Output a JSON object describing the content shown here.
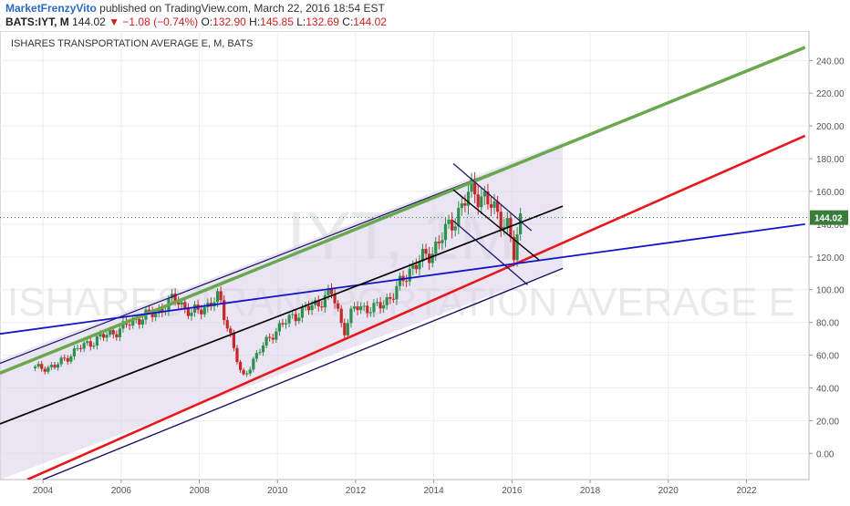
{
  "header": {
    "author": "MarketFrenzyVito",
    "published_text": "published on TradingView.com, March 22, 2016 18:54 EST",
    "symbol": "BATS:IYT, M",
    "last": "144.02",
    "change": "▼ −1.08 (−0.74%)",
    "open_label": "O:",
    "open": "132.90",
    "high_label": "H:",
    "high": "145.85",
    "low_label": "L:",
    "low": "132.69",
    "close_label": "C:",
    "close": "144.02"
  },
  "chart_data": {
    "type": "candlestick",
    "title": "ISHARES TRANSPORTATION AVERAGE E, M, BATS",
    "watermark_symbol": "IYT, 1M",
    "watermark_name": "ISHARES TRANSPORTATION AVERAGE E",
    "ylim": [
      -16,
      258
    ],
    "xlim": [
      2002.9,
      2023.6
    ],
    "y_ticks": [
      0,
      20,
      40,
      60,
      80,
      100,
      120,
      140,
      160,
      180,
      200,
      220,
      240
    ],
    "y_tick_labels": [
      "0.00",
      "20.00",
      "40.00",
      "60.00",
      "80.00",
      "100.00",
      "120.00",
      "140.00",
      "160.00",
      "180.00",
      "200.00",
      "220.00",
      "240.00"
    ],
    "x_ticks": [
      2004,
      2006,
      2008,
      2010,
      2012,
      2014,
      2016,
      2018,
      2020,
      2022
    ],
    "x_tick_labels": [
      "2004",
      "2006",
      "2008",
      "2010",
      "2012",
      "2014",
      "2016",
      "2018",
      "2020",
      "2022"
    ],
    "last_price": 144.02,
    "last_price_label": "144.02",
    "price_anchors": [
      [
        2003.8,
        52
      ],
      [
        2004.3,
        53
      ],
      [
        2004.9,
        64
      ],
      [
        2005.4,
        70
      ],
      [
        2005.9,
        75
      ],
      [
        2006.4,
        82
      ],
      [
        2006.9,
        86
      ],
      [
        2007.4,
        95
      ],
      [
        2007.8,
        85
      ],
      [
        2008.3,
        92
      ],
      [
        2008.5,
        95
      ],
      [
        2008.8,
        72
      ],
      [
        2009.1,
        45
      ],
      [
        2009.4,
        58
      ],
      [
        2009.9,
        74
      ],
      [
        2010.4,
        84
      ],
      [
        2010.9,
        90
      ],
      [
        2011.4,
        98
      ],
      [
        2011.7,
        75
      ],
      [
        2012.0,
        90
      ],
      [
        2012.5,
        88
      ],
      [
        2013.0,
        98
      ],
      [
        2013.4,
        113
      ],
      [
        2013.9,
        122
      ],
      [
        2014.3,
        135
      ],
      [
        2014.7,
        150
      ],
      [
        2015.0,
        162
      ],
      [
        2015.3,
        155
      ],
      [
        2015.7,
        145
      ],
      [
        2015.9,
        138
      ],
      [
        2016.05,
        120
      ],
      [
        2016.22,
        144
      ]
    ],
    "colors": {
      "up_candle": "#2f8f4e",
      "down_candle": "#c62828",
      "green_line": "#6aa84f",
      "red_line": "#e8171c",
      "blue_line": "#1414c8",
      "black_line": "#000000",
      "channel_line": "#1b1464",
      "channel_fill": "#d8d0e8",
      "price_line": "#3a7d3a"
    },
    "lines": [
      {
        "name": "green",
        "x1": 2002.9,
        "y1": 49,
        "x2": 2023.5,
        "y2": 248
      },
      {
        "name": "red",
        "x1": 2003.6,
        "y1": -16,
        "x2": 2023.5,
        "y2": 194
      },
      {
        "name": "blue",
        "x1": 2002.9,
        "y1": 73,
        "x2": 2023.5,
        "y2": 140
      },
      {
        "name": "black-mid",
        "x1": 2002.9,
        "y1": 18,
        "x2": 2017.3,
        "y2": 151
      },
      {
        "name": "lower-channel",
        "x1": 2004.0,
        "y1": -16,
        "x2": 2017.3,
        "y2": 113
      },
      {
        "name": "down-upper",
        "x1": 2014.5,
        "y1": 177,
        "x2": 2016.5,
        "y2": 136
      },
      {
        "name": "down-mid",
        "x1": 2014.5,
        "y1": 161,
        "x2": 2016.7,
        "y2": 118
      },
      {
        "name": "down-lower",
        "x1": 2014.5,
        "y1": 142,
        "x2": 2016.4,
        "y2": 103
      }
    ],
    "channel_polygon": [
      [
        2002.9,
        57
      ],
      [
        2017.3,
        190
      ],
      [
        2017.3,
        113
      ],
      [
        2002.9,
        -16
      ]
    ]
  }
}
